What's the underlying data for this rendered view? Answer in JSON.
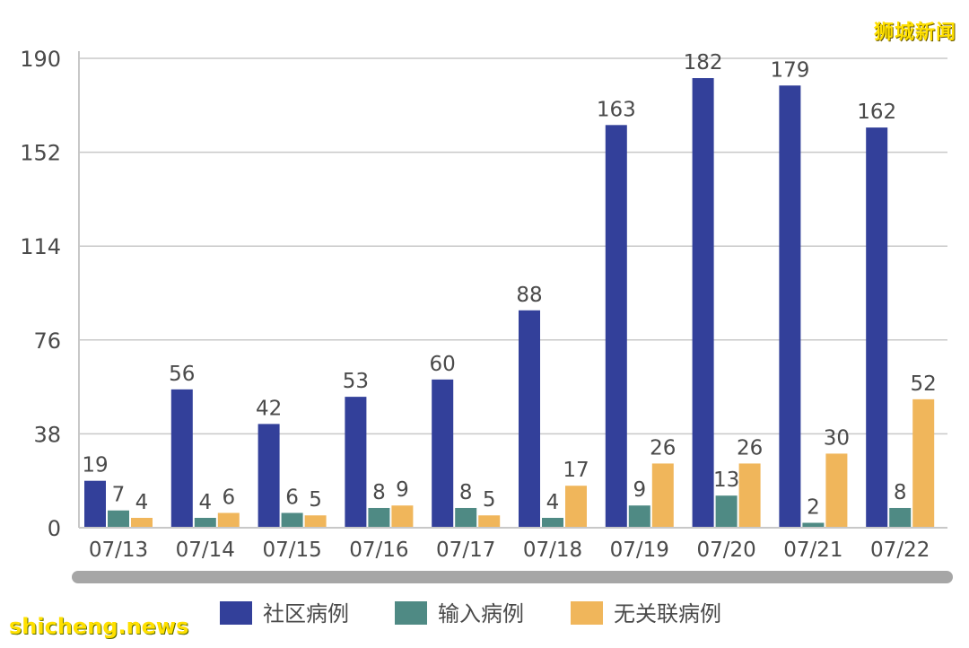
{
  "watermark_top": "狮城新闻",
  "watermark_bottom": "shicheng.news",
  "colors": {
    "community": "#33409a",
    "imported": "#4f8a84",
    "unlinked": "#f0b65b",
    "grid": "#c8c8c8",
    "text": "#4a4a4a",
    "scrollbar": "#a6a6a6",
    "watermark": "#ffe000"
  },
  "chart_data": {
    "type": "bar",
    "categories": [
      "07/13",
      "07/14",
      "07/15",
      "07/16",
      "07/17",
      "07/18",
      "07/19",
      "07/20",
      "07/21",
      "07/22"
    ],
    "series": [
      {
        "name": "社区病例",
        "values": [
          19,
          56,
          42,
          53,
          60,
          88,
          163,
          182,
          179,
          162
        ]
      },
      {
        "name": "输入病例",
        "values": [
          7,
          4,
          6,
          8,
          8,
          4,
          9,
          13,
          2,
          8
        ]
      },
      {
        "name": "无关联病例",
        "values": [
          4,
          6,
          5,
          9,
          5,
          17,
          26,
          26,
          30,
          52
        ]
      }
    ],
    "yticks": [
      "0",
      "38",
      "76",
      "114",
      "152",
      "190"
    ],
    "ylim": [
      0,
      190
    ],
    "grid": true,
    "legend_position": "bottom"
  }
}
